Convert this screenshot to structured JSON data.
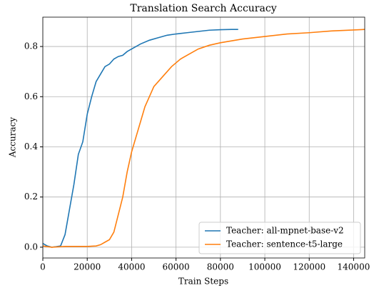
{
  "chart_data": {
    "type": "line",
    "title": "Translation Search Accuracy",
    "xlabel": "Train Steps",
    "ylabel": "Accuracy",
    "xlim": [
      0,
      145000
    ],
    "ylim": [
      -0.043,
      0.917
    ],
    "xticks": [
      0,
      20000,
      40000,
      60000,
      80000,
      100000,
      120000,
      140000
    ],
    "yticks": [
      {
        "value": 0,
        "label": "0.0"
      },
      0.2,
      0.4,
      0.6,
      0.8
    ],
    "grid": true,
    "legend": "lower right",
    "series": [
      {
        "name": "Teacher: all-mpnet-base-v2",
        "color": "#1f77b4",
        "x": [
          0,
          2000,
          4000,
          6000,
          8000,
          10000,
          12000,
          14000,
          16000,
          18000,
          20000,
          22000,
          24000,
          26000,
          28000,
          30000,
          32000,
          34000,
          36000,
          38000,
          40000,
          44000,
          48000,
          52000,
          56000,
          60000,
          65000,
          70000,
          75000,
          80000,
          85000,
          88000
        ],
        "values": [
          0.015,
          0.005,
          0.0,
          0.002,
          0.005,
          0.05,
          0.15,
          0.25,
          0.37,
          0.42,
          0.53,
          0.6,
          0.66,
          0.69,
          0.72,
          0.73,
          0.75,
          0.76,
          0.765,
          0.78,
          0.79,
          0.81,
          0.825,
          0.835,
          0.845,
          0.85,
          0.855,
          0.86,
          0.865,
          0.867,
          0.868,
          0.868
        ]
      },
      {
        "name": "Teacher: sentence-t5-large",
        "color": "#ff7f0e",
        "x": [
          0,
          4000,
          10000,
          20000,
          24000,
          26000,
          28000,
          30000,
          32000,
          34000,
          36000,
          38000,
          40000,
          42000,
          44000,
          46000,
          48000,
          50000,
          54000,
          58000,
          62000,
          66000,
          70000,
          75000,
          80000,
          90000,
          100000,
          110000,
          120000,
          130000,
          140000,
          145000
        ],
        "values": [
          0.005,
          0.0,
          0.003,
          0.003,
          0.005,
          0.01,
          0.02,
          0.03,
          0.06,
          0.13,
          0.2,
          0.3,
          0.38,
          0.44,
          0.5,
          0.56,
          0.6,
          0.64,
          0.68,
          0.72,
          0.75,
          0.77,
          0.79,
          0.805,
          0.815,
          0.83,
          0.84,
          0.85,
          0.855,
          0.862,
          0.866,
          0.868
        ]
      }
    ]
  }
}
